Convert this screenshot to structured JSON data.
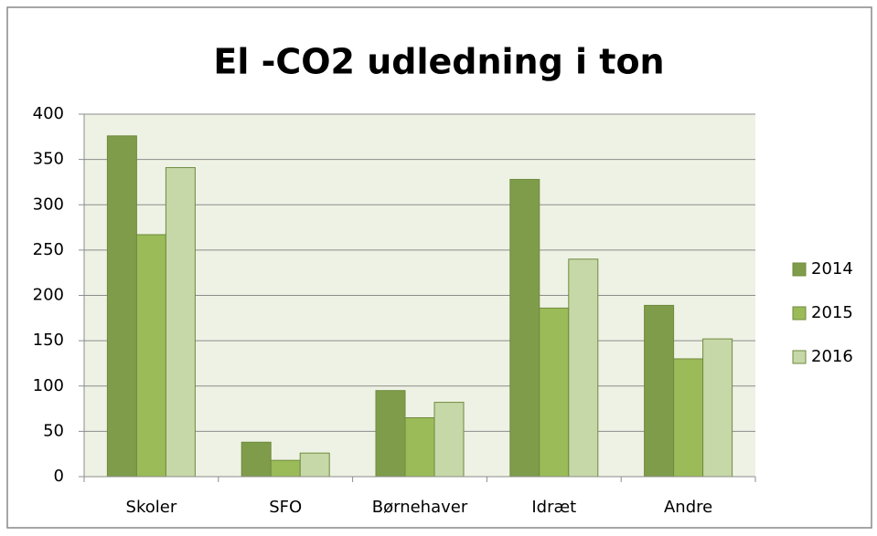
{
  "chart_data": {
    "type": "bar",
    "title": "El -CO2 udledning i ton",
    "categories": [
      "Skoler",
      "SFO",
      "Børnehaver",
      "Idræt",
      "Andre"
    ],
    "series": [
      {
        "name": "2014",
        "color": "#7f9c4b",
        "values": [
          376,
          38,
          95,
          328,
          189
        ]
      },
      {
        "name": "2015",
        "color": "#9bbb59",
        "values": [
          267,
          18,
          65,
          186,
          130
        ]
      },
      {
        "name": "2016",
        "color": "#c6d8a8",
        "values": [
          341,
          26,
          82,
          240,
          152
        ]
      }
    ],
    "ylim": [
      0,
      400
    ],
    "yticks": [
      0,
      50,
      100,
      150,
      200,
      250,
      300,
      350,
      400
    ],
    "grid": true,
    "legend": "right"
  }
}
